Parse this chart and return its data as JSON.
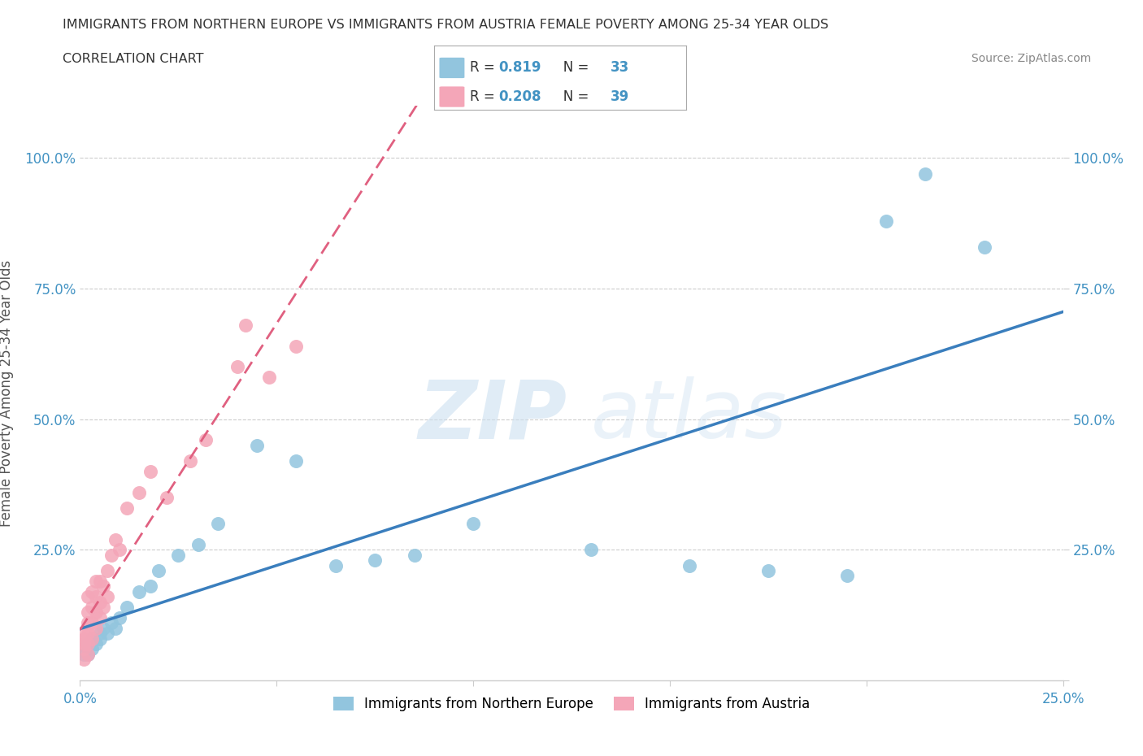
{
  "title": "IMMIGRANTS FROM NORTHERN EUROPE VS IMMIGRANTS FROM AUSTRIA FEMALE POVERTY AMONG 25-34 YEAR OLDS",
  "subtitle": "CORRELATION CHART",
  "source": "Source: ZipAtlas.com",
  "ylabel": "Female Poverty Among 25-34 Year Olds",
  "xlim": [
    0,
    0.25
  ],
  "ylim": [
    0,
    1.1
  ],
  "legend_labels": [
    "Immigrants from Northern Europe",
    "Immigrants from Austria"
  ],
  "legend_R": [
    "0.819",
    "0.208"
  ],
  "legend_N": [
    "33",
    "39"
  ],
  "color_blue": "#92C5DE",
  "color_pink": "#F4A6B8",
  "line_blue": "#3A7EBD",
  "line_pink": "#E06080",
  "watermark_zip": "ZIP",
  "watermark_atlas": "atlas",
  "blue_x": [
    0.001,
    0.002,
    0.002,
    0.003,
    0.003,
    0.004,
    0.004,
    0.005,
    0.005,
    0.006,
    0.006,
    0.007,
    0.008,
    0.008,
    0.009,
    0.01,
    0.012,
    0.015,
    0.02,
    0.025,
    0.03,
    0.04,
    0.05,
    0.06,
    0.08,
    0.1,
    0.12,
    0.15,
    0.175,
    0.195,
    0.205,
    0.215,
    0.235
  ],
  "blue_y": [
    0.04,
    0.05,
    0.06,
    0.07,
    0.08,
    0.06,
    0.09,
    0.07,
    0.1,
    0.08,
    0.11,
    0.09,
    0.1,
    0.12,
    0.11,
    0.1,
    0.13,
    0.16,
    0.2,
    0.22,
    0.24,
    0.3,
    0.43,
    0.45,
    0.27,
    0.3,
    0.25,
    0.19,
    0.22,
    0.21,
    0.88,
    0.97,
    0.85
  ],
  "pink_x": [
    0.001,
    0.001,
    0.001,
    0.001,
    0.002,
    0.002,
    0.002,
    0.002,
    0.002,
    0.003,
    0.003,
    0.003,
    0.003,
    0.004,
    0.004,
    0.004,
    0.005,
    0.005,
    0.005,
    0.006,
    0.006,
    0.007,
    0.007,
    0.008,
    0.009,
    0.01,
    0.01,
    0.012,
    0.015,
    0.018,
    0.022,
    0.025,
    0.03,
    0.035,
    0.04,
    0.045,
    0.05,
    0.055,
    0.06
  ],
  "pink_y": [
    0.04,
    0.05,
    0.06,
    0.07,
    0.05,
    0.07,
    0.09,
    0.1,
    0.12,
    0.08,
    0.1,
    0.12,
    0.14,
    0.1,
    0.13,
    0.15,
    0.12,
    0.16,
    0.18,
    0.14,
    0.17,
    0.2,
    0.22,
    0.24,
    0.27,
    0.25,
    0.3,
    0.33,
    0.36,
    0.39,
    0.38,
    0.42,
    0.45,
    0.5,
    0.55,
    0.58,
    0.6,
    0.62,
    0.65
  ]
}
